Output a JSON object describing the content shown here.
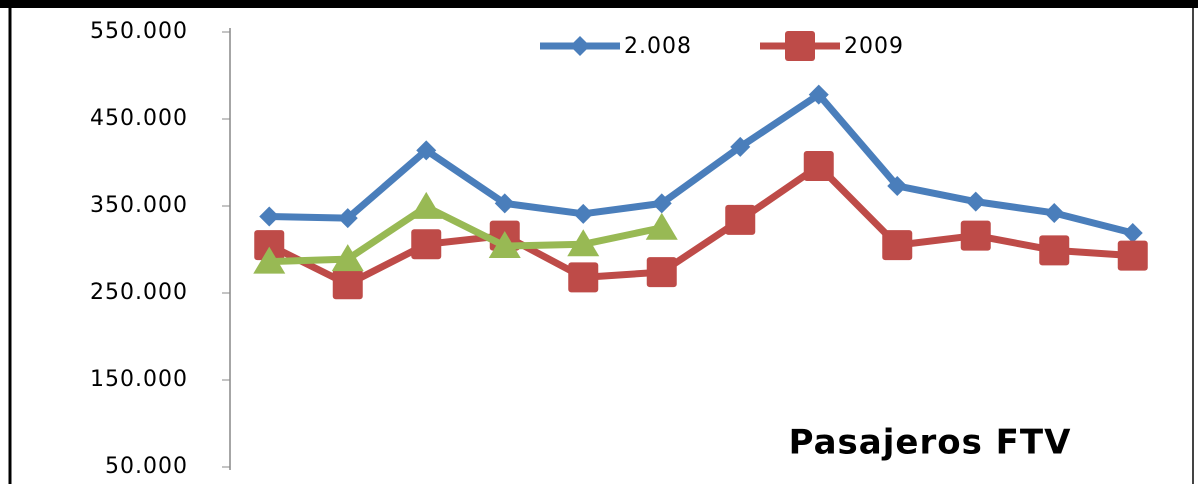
{
  "chart_data": {
    "type": "line",
    "annotation": "Pasajeros FTV",
    "categories": [
      null,
      null,
      null,
      null,
      null,
      null,
      null,
      null,
      null,
      null,
      null,
      null
    ],
    "series": [
      {
        "name": "2.008",
        "color": "#4a7ebb",
        "marker": "diamond",
        "values": [
          338000,
          336000,
          414000,
          353000,
          341000,
          353000,
          418000,
          478000,
          373000,
          355000,
          342000,
          319000
        ]
      },
      {
        "name": "2009",
        "color": "#be4b48",
        "marker": "square",
        "values": [
          305000,
          260000,
          306000,
          316000,
          268000,
          274000,
          334000,
          396000,
          305000,
          316000,
          299000,
          293000
        ]
      },
      {
        "color": "#98b954",
        "marker": "triangle",
        "values": [
          286000,
          289000,
          349000,
          304000,
          306000,
          325000,
          null,
          null,
          null,
          null,
          null,
          null
        ]
      }
    ],
    "ylim": [
      50000,
      550000
    ],
    "yticks": [
      {
        "value": 50000,
        "label": "50.000"
      },
      {
        "value": 150000,
        "label": "150.000"
      },
      {
        "value": 250000,
        "label": "250.000"
      },
      {
        "value": 350000,
        "label": "350.000"
      },
      {
        "value": 450000,
        "label": "450.000"
      },
      {
        "value": 550000,
        "label": "550.000"
      }
    ],
    "grid": false,
    "legend": "top"
  }
}
